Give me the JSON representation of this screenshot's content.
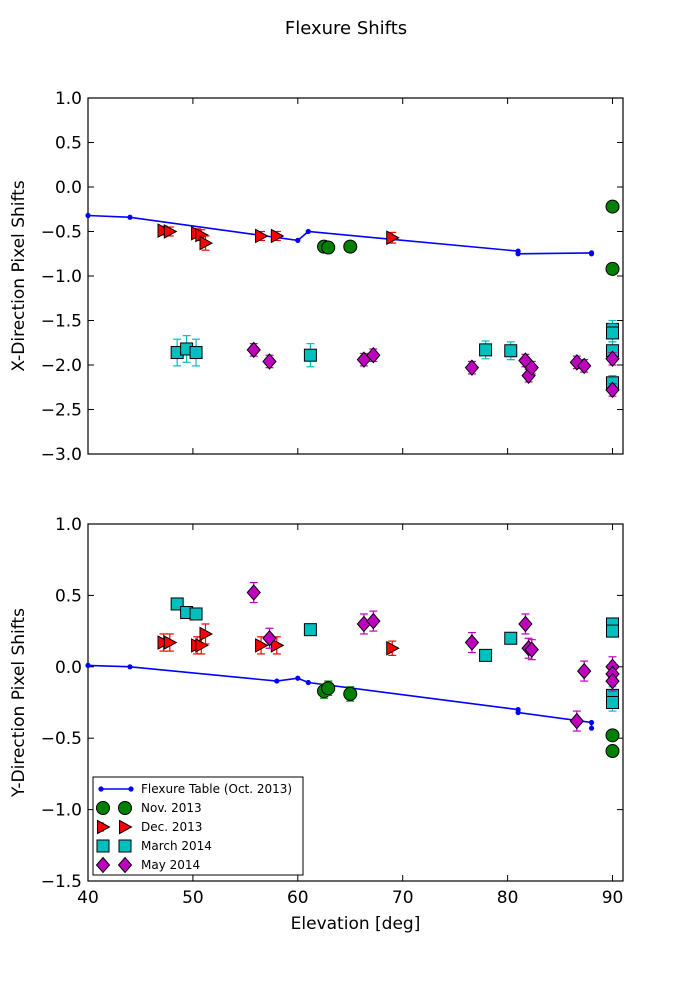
{
  "figure_title": "Flexure Shifts",
  "colors": {
    "flexure": "#0000ff",
    "nov": "#008000",
    "dec": "#ff0000",
    "march": "#00bfbf",
    "may": "#bf00bf"
  },
  "chart_data": [
    {
      "type": "scatter",
      "ylabel": "X-Direction Pixel Shifts",
      "xlabel": "",
      "xlim": [
        40,
        91
      ],
      "ylim": [
        -3.0,
        1.0
      ],
      "xticks": [],
      "yticks": [
        "−3.0",
        "−2.5",
        "−2.0",
        "−1.5",
        "−1.0",
        "−0.5",
        "0.0",
        "0.5",
        "1.0"
      ],
      "ytick_values": [
        -3.0,
        -2.5,
        -2.0,
        -1.5,
        -1.0,
        -0.5,
        0.0,
        0.5,
        1.0
      ],
      "series": [
        {
          "name": "Flexure Table (Oct. 2013)",
          "marker": "line",
          "color": "#0000ff",
          "points": [
            [
              40,
              -0.32
            ],
            [
              44,
              -0.34
            ],
            [
              60,
              -0.6
            ],
            [
              61,
              -0.5
            ],
            [
              81,
              -0.72
            ],
            [
              81,
              -0.75
            ],
            [
              88,
              -0.74
            ],
            [
              88,
              -0.75
            ]
          ]
        },
        {
          "name": "Nov. 2013",
          "marker": "circle",
          "color": "#008000",
          "points": [
            [
              62.5,
              -0.67,
              0.05
            ],
            [
              62.9,
              -0.68,
              0.05
            ],
            [
              65,
              -0.67,
              0.05
            ],
            [
              90,
              -0.22,
              0.0
            ],
            [
              90,
              -0.92,
              0.0
            ]
          ]
        },
        {
          "name": "Dec. 2013",
          "marker": "triangle",
          "color": "#ff0000",
          "points": [
            [
              47.2,
              -0.49,
              0.05
            ],
            [
              47.8,
              -0.5,
              0.05
            ],
            [
              50.4,
              -0.52,
              0.05
            ],
            [
              50.8,
              -0.54,
              0.06
            ],
            [
              51.2,
              -0.63,
              0.08
            ],
            [
              56.5,
              -0.55,
              0.05
            ],
            [
              58,
              -0.55,
              0.05
            ],
            [
              69,
              -0.57,
              0.06
            ]
          ]
        },
        {
          "name": "March 2014",
          "marker": "square",
          "color": "#00bfbf",
          "points": [
            [
              48.5,
              -1.86,
              0.15
            ],
            [
              49.4,
              -1.82,
              0.15
            ],
            [
              50.3,
              -1.86,
              0.15
            ],
            [
              61.2,
              -1.89,
              0.13
            ],
            [
              77.9,
              -1.83,
              0.1
            ],
            [
              80.3,
              -1.84,
              0.1
            ],
            [
              90,
              -1.6,
              0.1
            ],
            [
              90,
              -1.64,
              0.1
            ],
            [
              90,
              -1.84,
              0.1
            ],
            [
              90,
              -2.2,
              0.08
            ]
          ]
        },
        {
          "name": "May 2014",
          "marker": "diamond",
          "color": "#bf00bf",
          "points": [
            [
              55.8,
              -1.83,
              0.07
            ],
            [
              57.3,
              -1.96,
              0.07
            ],
            [
              66.3,
              -1.94,
              0.07
            ],
            [
              67.2,
              -1.89,
              0.07
            ],
            [
              76.6,
              -2.03,
              0.07
            ],
            [
              81.7,
              -1.95,
              0.07
            ],
            [
              82,
              -2.12,
              0.07
            ],
            [
              82.3,
              -2.03,
              0.07
            ],
            [
              86.6,
              -1.97,
              0.07
            ],
            [
              87.3,
              -2.01,
              0.07
            ],
            [
              90,
              -1.93,
              0.07
            ],
            [
              90,
              -2.28,
              0.07
            ]
          ]
        }
      ]
    },
    {
      "type": "scatter",
      "ylabel": "Y-Direction Pixel Shifts",
      "xlabel": "Elevation [deg]",
      "xlim": [
        40,
        91
      ],
      "ylim": [
        -1.5,
        1.0
      ],
      "xticks": [
        "40",
        "50",
        "60",
        "70",
        "80",
        "90"
      ],
      "xtick_values": [
        40,
        50,
        60,
        70,
        80,
        90
      ],
      "yticks": [
        "−1.5",
        "−1.0",
        "−0.5",
        "0.0",
        "0.5",
        "1.0"
      ],
      "ytick_values": [
        -1.5,
        -1.0,
        -0.5,
        0.0,
        0.5,
        1.0
      ],
      "legend_position": "lower-left",
      "series": [
        {
          "name": "Flexure Table (Oct. 2013)",
          "marker": "line",
          "color": "#0000ff",
          "points": [
            [
              40,
              0.01
            ],
            [
              44,
              0.0
            ],
            [
              58,
              -0.1
            ],
            [
              60,
              -0.08
            ],
            [
              61,
              -0.11
            ],
            [
              81,
              -0.3
            ],
            [
              81,
              -0.32
            ],
            [
              88,
              -0.39
            ],
            [
              88,
              -0.43
            ]
          ]
        },
        {
          "name": "Nov. 2013",
          "marker": "circle",
          "color": "#008000",
          "points": [
            [
              62.5,
              -0.17,
              0.05
            ],
            [
              62.9,
              -0.15,
              0.05
            ],
            [
              65,
              -0.19,
              0.05
            ],
            [
              90,
              -0.48,
              0.0
            ],
            [
              90,
              -0.59,
              0.0
            ]
          ]
        },
        {
          "name": "Dec. 2013",
          "marker": "triangle",
          "color": "#ff0000",
          "points": [
            [
              47.2,
              0.17,
              0.06
            ],
            [
              47.8,
              0.17,
              0.06
            ],
            [
              50.4,
              0.15,
              0.06
            ],
            [
              50.8,
              0.15,
              0.06
            ],
            [
              51.2,
              0.23,
              0.07
            ],
            [
              56.5,
              0.15,
              0.06
            ],
            [
              58,
              0.15,
              0.06
            ],
            [
              69,
              0.13,
              0.05
            ]
          ]
        },
        {
          "name": "March 2014",
          "marker": "square",
          "color": "#00bfbf",
          "points": [
            [
              48.5,
              0.44,
              0.0
            ],
            [
              49.4,
              0.38,
              0.0
            ],
            [
              50.3,
              0.37,
              0.0
            ],
            [
              61.2,
              0.26,
              0.0
            ],
            [
              77.9,
              0.08,
              0.0
            ],
            [
              80.3,
              0.2,
              0.0
            ],
            [
              90,
              0.3,
              0.0
            ],
            [
              90,
              0.25,
              0.0
            ],
            [
              90,
              -0.2,
              0.06
            ],
            [
              90,
              -0.25,
              0.06
            ]
          ]
        },
        {
          "name": "May 2014",
          "marker": "diamond",
          "color": "#bf00bf",
          "points": [
            [
              55.8,
              0.52,
              0.07
            ],
            [
              57.3,
              0.2,
              0.07
            ],
            [
              66.3,
              0.3,
              0.07
            ],
            [
              67.2,
              0.32,
              0.07
            ],
            [
              76.6,
              0.17,
              0.07
            ],
            [
              81.7,
              0.3,
              0.07
            ],
            [
              82,
              0.13,
              0.07
            ],
            [
              82.3,
              0.12,
              0.07
            ],
            [
              86.6,
              -0.38,
              0.07
            ],
            [
              87.3,
              -0.03,
              0.07
            ],
            [
              90,
              0.0,
              0.07
            ],
            [
              90,
              -0.05,
              0.07
            ],
            [
              90,
              -0.1,
              0.07
            ]
          ]
        }
      ]
    }
  ]
}
